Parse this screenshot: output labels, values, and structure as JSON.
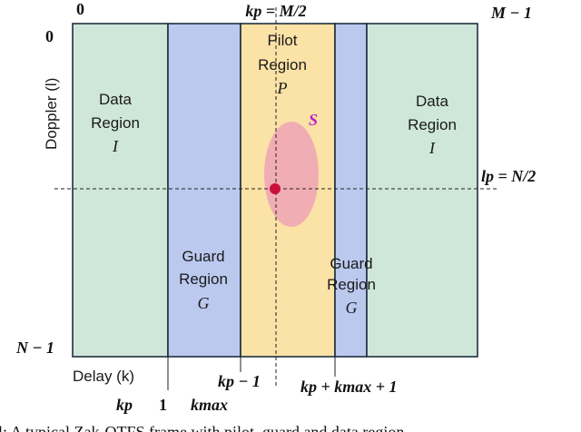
{
  "colors": {
    "data_region": "#cfe7d9",
    "guard_region": "#bcc9ef",
    "pilot_region": "#fbe2a6",
    "spread_region": "#f0a7b6",
    "pilot_dot": "#c8103a",
    "spread_label": "#c21fc8",
    "outline": "#1f2e3f"
  },
  "corners": {
    "top_left": "0",
    "left_top": "0",
    "top_right": "M − 1",
    "bottom_left": "N − 1"
  },
  "axes": {
    "doppler": "Doppler (l)",
    "delay": "Delay (k)"
  },
  "markers": {
    "kp_top": "kp = M/2",
    "lp_right": "lp = N/2",
    "kp_minus_1": "kp − 1",
    "kp_plus_kmax_plus_1": "kp + kmax + 1",
    "kmax": "kmax",
    "kp": "kp",
    "one": "1"
  },
  "regions": {
    "data_left": {
      "line1": "Data",
      "line2": "Region",
      "symbol": "I"
    },
    "data_right": {
      "line1": "Data",
      "line2": "Region",
      "symbol": "I"
    },
    "guard_left": {
      "line1": "Guard",
      "line2": "Region",
      "symbol": "G"
    },
    "guard_right": {
      "line1": "Guard",
      "line2": "Region",
      "symbol": "G"
    },
    "pilot": {
      "line1": "Pilot",
      "line2": "Region",
      "symbol": "P"
    },
    "spread": {
      "symbol": "S"
    }
  },
  "caption": "l: A typical Zak-OTFS frame with pilot, guard and data region"
}
